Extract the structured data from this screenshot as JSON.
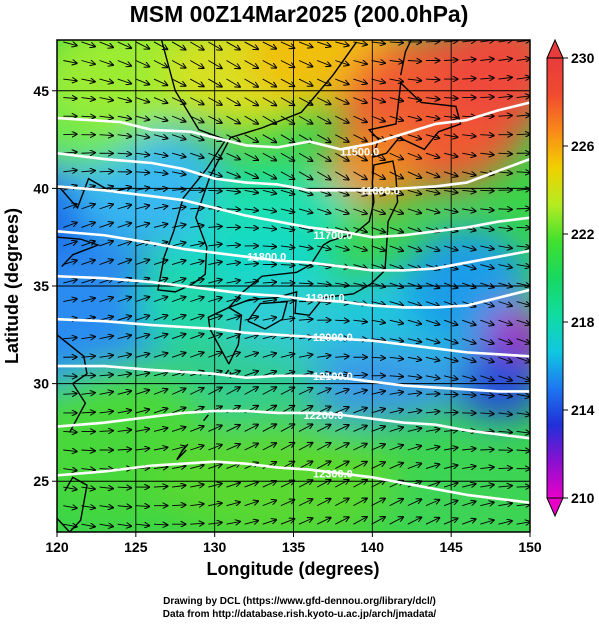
{
  "title": "MSM 00Z14Mar2025 (200.0hPa)",
  "xlabel": "Longitude (degrees)",
  "ylabel": "Latitude  (degrees)",
  "credits": [
    "Drawing by DCL (https://www.gfd-dennou.org/library/dcl/)",
    "Data from http://database.rish.kyoto-u.ac.jp/arch/jmadata/"
  ],
  "map": {
    "lon_range": [
      120,
      150
    ],
    "lat_range": [
      22.4,
      47.6
    ],
    "x_ticks": [
      120,
      125,
      130,
      135,
      140,
      145,
      150
    ],
    "x_tick_labels": [
      "120",
      "125",
      "130",
      "135",
      "140",
      "145",
      "150"
    ],
    "y_ticks": [
      25,
      30,
      35,
      40,
      45
    ],
    "y_tick_labels": [
      "25",
      "30",
      "35",
      "40",
      "45"
    ],
    "grid": true,
    "shading_variable": "temperature (K)",
    "vector_field": "wind arrows, westerly",
    "contour_color": "#ffffff"
  },
  "colorbar": {
    "min": 210,
    "max": 230,
    "ticks": [
      210,
      214,
      218,
      222,
      226,
      230
    ],
    "tick_labels": [
      "210",
      "214",
      "218",
      "222",
      "226",
      "230"
    ],
    "colors": [
      "#e800c8",
      "#8a10d0",
      "#2030d8",
      "#1e78f0",
      "#10c8e0",
      "#10dca0",
      "#18d860",
      "#40e030",
      "#b4ec20",
      "#f0d000",
      "#fa8a18",
      "#f04a30",
      "#e83c3c"
    ]
  },
  "contours": [
    {
      "value": 11500.0,
      "label": "11500.0",
      "lon": 139.2,
      "lat": 41.9,
      "path": [
        [
          120,
          43.6
        ],
        [
          124,
          43.4
        ],
        [
          126,
          43.0
        ],
        [
          128.5,
          42.9
        ],
        [
          130,
          42.6
        ],
        [
          132,
          42.2
        ],
        [
          134,
          42.1
        ],
        [
          136,
          42.4
        ],
        [
          138,
          42.0
        ],
        [
          140,
          42.3
        ],
        [
          142,
          42.8
        ],
        [
          144,
          43.3
        ],
        [
          146,
          43.5
        ],
        [
          148,
          44.0
        ],
        [
          150,
          44.4
        ]
      ]
    },
    {
      "value": 11600.0,
      "label": "11600.0",
      "lon": 140.5,
      "lat": 39.9,
      "path": [
        [
          120,
          41.8
        ],
        [
          123,
          41.5
        ],
        [
          126,
          41.3
        ],
        [
          128,
          41.0
        ],
        [
          130,
          40.5
        ],
        [
          132,
          40.3
        ],
        [
          134,
          40.2
        ],
        [
          136,
          39.9
        ],
        [
          138,
          39.9
        ],
        [
          140,
          39.9
        ],
        [
          142,
          40.0
        ],
        [
          144,
          40.1
        ],
        [
          146,
          40.3
        ],
        [
          148,
          40.9
        ],
        [
          150,
          41.5
        ]
      ]
    },
    {
      "value": 11700.0,
      "label": "11700.0",
      "lon": 137.5,
      "lat": 37.6,
      "path": [
        [
          120,
          40.1
        ],
        [
          123,
          39.9
        ],
        [
          126,
          39.6
        ],
        [
          128,
          39.4
        ],
        [
          130,
          39.0
        ],
        [
          132,
          38.6
        ],
        [
          134,
          38.3
        ],
        [
          136,
          38.0
        ],
        [
          138,
          37.8
        ],
        [
          140,
          37.5
        ],
        [
          142,
          37.6
        ],
        [
          144,
          37.8
        ],
        [
          146,
          38.0
        ],
        [
          148,
          38.3
        ],
        [
          150,
          38.5
        ]
      ]
    },
    {
      "value": 11800.0,
      "label": "11800.0",
      "lon": 133.3,
      "lat": 36.5,
      "path": [
        [
          120,
          37.8
        ],
        [
          123,
          37.6
        ],
        [
          126,
          37.2
        ],
        [
          128,
          36.9
        ],
        [
          130,
          36.7
        ],
        [
          132,
          36.5
        ],
        [
          134,
          36.3
        ],
        [
          136,
          36.2
        ],
        [
          138,
          36.0
        ],
        [
          140,
          35.8
        ],
        [
          142,
          35.8
        ],
        [
          144,
          35.9
        ],
        [
          146,
          36.2
        ],
        [
          148,
          36.5
        ],
        [
          150,
          36.8
        ]
      ]
    },
    {
      "value": 11900.0,
      "label": "11900.0",
      "lon": 137.0,
      "lat": 34.4,
      "path": [
        [
          120,
          35.5
        ],
        [
          123,
          35.4
        ],
        [
          126,
          35.2
        ],
        [
          128,
          35.0
        ],
        [
          130,
          34.8
        ],
        [
          132,
          34.6
        ],
        [
          134,
          34.5
        ],
        [
          136,
          34.3
        ],
        [
          138,
          34.2
        ],
        [
          140,
          34.0
        ],
        [
          142,
          33.9
        ],
        [
          144,
          33.9
        ],
        [
          146,
          34.0
        ],
        [
          148,
          34.4
        ],
        [
          150,
          34.8
        ]
      ]
    },
    {
      "value": 12000.0,
      "label": "12000.0",
      "lon": 137.5,
      "lat": 32.4,
      "path": [
        [
          120,
          33.3
        ],
        [
          123,
          33.2
        ],
        [
          126,
          33.0
        ],
        [
          128,
          32.9
        ],
        [
          130,
          32.8
        ],
        [
          132,
          32.6
        ],
        [
          134,
          32.5
        ],
        [
          136,
          32.4
        ],
        [
          138,
          32.3
        ],
        [
          140,
          32.2
        ],
        [
          142,
          32.0
        ],
        [
          144,
          31.8
        ],
        [
          146,
          31.6
        ],
        [
          148,
          31.5
        ],
        [
          150,
          31.4
        ]
      ]
    },
    {
      "value": 12100.0,
      "label": "12100.0",
      "lon": 137.5,
      "lat": 30.4,
      "path": [
        [
          120,
          30.9
        ],
        [
          123,
          30.9
        ],
        [
          126,
          30.7
        ],
        [
          128,
          30.6
        ],
        [
          130,
          30.5
        ],
        [
          132,
          30.3
        ],
        [
          134,
          30.4
        ],
        [
          136,
          30.4
        ],
        [
          138,
          30.3
        ],
        [
          140,
          30.1
        ],
        [
          142,
          29.9
        ],
        [
          144,
          29.8
        ],
        [
          146,
          29.7
        ],
        [
          148,
          29.6
        ],
        [
          150,
          29.6
        ]
      ]
    },
    {
      "value": 12200.0,
      "label": "12200.0",
      "lon": 136.9,
      "lat": 28.4,
      "path": [
        [
          120,
          27.8
        ],
        [
          123,
          28.0
        ],
        [
          126,
          28.3
        ],
        [
          128,
          28.5
        ],
        [
          130,
          28.6
        ],
        [
          132,
          28.6
        ],
        [
          134,
          28.5
        ],
        [
          136,
          28.5
        ],
        [
          138,
          28.4
        ],
        [
          140,
          28.2
        ],
        [
          142,
          28.0
        ],
        [
          144,
          27.9
        ],
        [
          146,
          27.6
        ],
        [
          148,
          27.4
        ],
        [
          150,
          27.2
        ]
      ]
    },
    {
      "value": 12300.0,
      "label": "12300.0",
      "lon": 137.5,
      "lat": 25.4,
      "path": [
        [
          120,
          25.3
        ],
        [
          123,
          25.5
        ],
        [
          126,
          25.8
        ],
        [
          128,
          25.9
        ],
        [
          130,
          26.0
        ],
        [
          132,
          25.9
        ],
        [
          134,
          25.7
        ],
        [
          136,
          25.6
        ],
        [
          138,
          25.4
        ],
        [
          140,
          25.2
        ],
        [
          142,
          24.9
        ],
        [
          144,
          24.6
        ],
        [
          146,
          24.3
        ],
        [
          148,
          24.1
        ],
        [
          150,
          23.9
        ]
      ]
    }
  ]
}
